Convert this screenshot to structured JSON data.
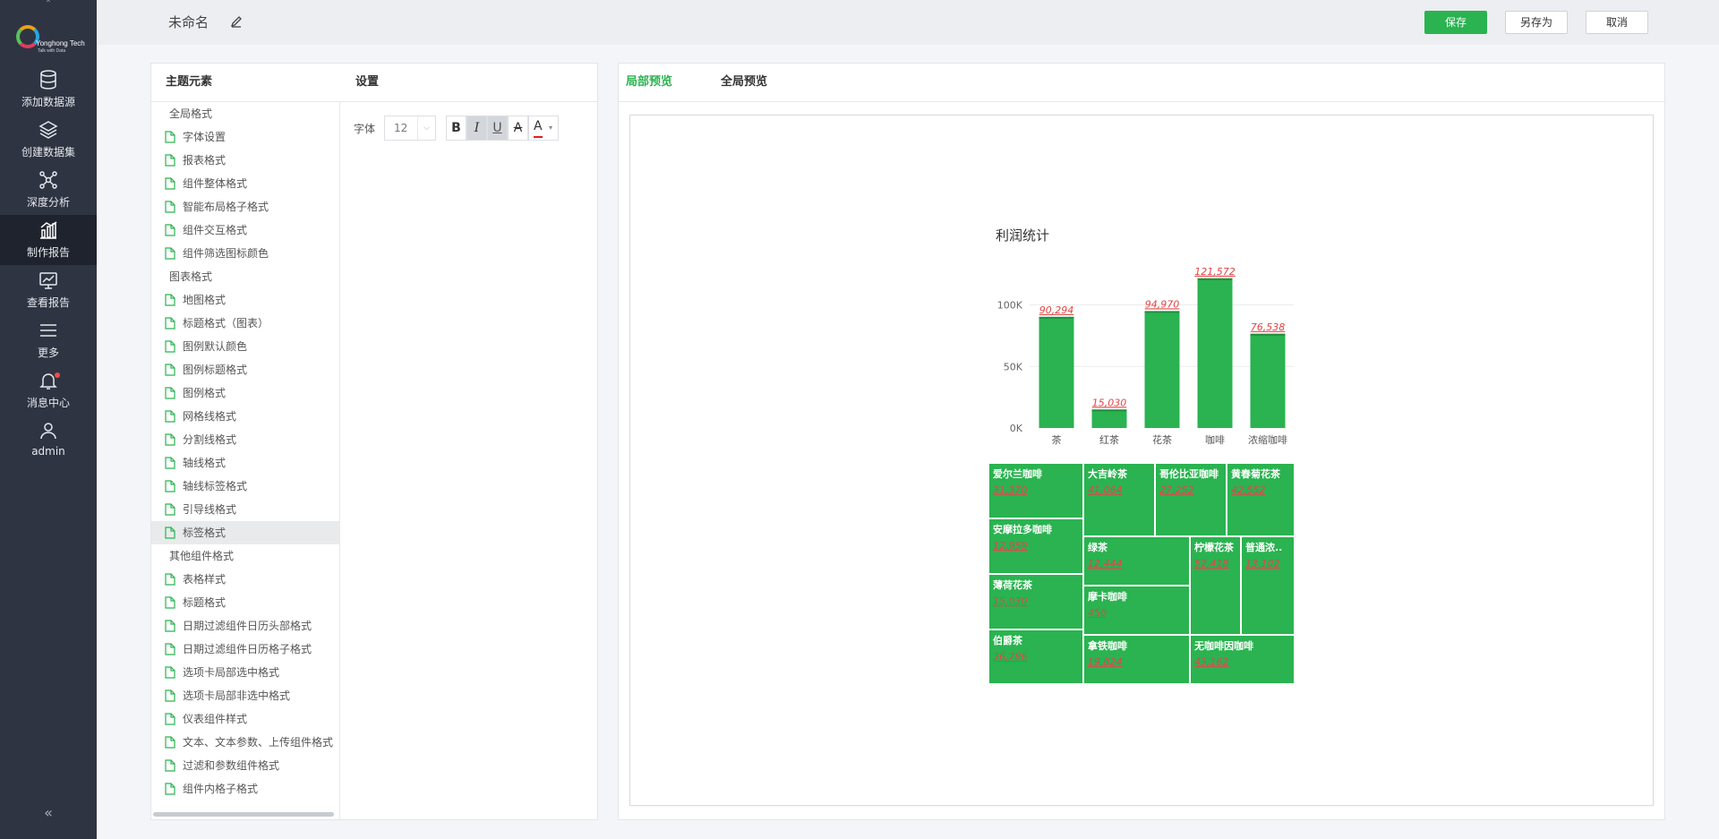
{
  "app": {
    "logo_text": "Yonghong Tech",
    "logo_slogan": "Talk with Data",
    "nav": [
      {
        "label": "添加数据源",
        "icon": "database-icon"
      },
      {
        "label": "创建数据集",
        "icon": "layers-icon"
      },
      {
        "label": "深度分析",
        "icon": "network-icon"
      },
      {
        "label": "制作报告",
        "icon": "report-chart-icon",
        "active": true
      },
      {
        "label": "查看报告",
        "icon": "monitor-chart-icon"
      },
      {
        "label": "更多",
        "icon": "menu-icon"
      },
      {
        "label": "消息中心",
        "icon": "bell-icon",
        "badge": true
      },
      {
        "label": "admin",
        "icon": "user-icon"
      }
    ],
    "collapse_glyph": "«"
  },
  "header": {
    "title": "未命名",
    "buttons": {
      "save": "保存",
      "save_as": "另存为",
      "cancel": "取消"
    }
  },
  "theme_panel": {
    "col1": "主题元素",
    "col2": "设置",
    "tree": [
      {
        "label": "全局格式",
        "type": "group"
      },
      {
        "label": "字体设置",
        "type": "leaf"
      },
      {
        "label": "报表格式",
        "type": "leaf"
      },
      {
        "label": "组件整体格式",
        "type": "leaf"
      },
      {
        "label": "智能布局格子格式",
        "type": "leaf"
      },
      {
        "label": "组件交互格式",
        "type": "leaf"
      },
      {
        "label": "组件筛选图标颜色",
        "type": "leaf"
      },
      {
        "label": "图表格式",
        "type": "group"
      },
      {
        "label": "地图格式",
        "type": "leaf"
      },
      {
        "label": "标题格式（图表）",
        "type": "leaf"
      },
      {
        "label": "图例默认颜色",
        "type": "leaf"
      },
      {
        "label": "图例标题格式",
        "type": "leaf"
      },
      {
        "label": "图例格式",
        "type": "leaf"
      },
      {
        "label": "网格线格式",
        "type": "leaf"
      },
      {
        "label": "分割线格式",
        "type": "leaf"
      },
      {
        "label": "轴线格式",
        "type": "leaf"
      },
      {
        "label": "轴线标签格式",
        "type": "leaf"
      },
      {
        "label": "引导线格式",
        "type": "leaf"
      },
      {
        "label": "标签格式",
        "type": "leaf",
        "selected": true
      },
      {
        "label": "其他组件格式",
        "type": "group"
      },
      {
        "label": "表格样式",
        "type": "leaf"
      },
      {
        "label": "标题格式",
        "type": "leaf"
      },
      {
        "label": "日期过滤组件日历头部格式",
        "type": "leaf"
      },
      {
        "label": "日期过滤组件日历格子格式",
        "type": "leaf"
      },
      {
        "label": "选项卡局部选中格式",
        "type": "leaf"
      },
      {
        "label": "选项卡局部非选中格式",
        "type": "leaf"
      },
      {
        "label": "仪表组件样式",
        "type": "leaf"
      },
      {
        "label": "文本、文本参数、上传组件格式",
        "type": "leaf"
      },
      {
        "label": "过滤和参数组件格式",
        "type": "leaf"
      },
      {
        "label": "组件内格子格式",
        "type": "leaf"
      }
    ],
    "settings": {
      "font_label": "字体",
      "font_size": "12",
      "bold": "B",
      "italic": "I",
      "underline": "U",
      "strike": "A",
      "color": "A",
      "color_value": "#e02020",
      "active_styles": [
        "italic",
        "underline"
      ]
    }
  },
  "preview": {
    "tabs": [
      {
        "label": "局部预览",
        "active": true
      },
      {
        "label": "全局预览",
        "active": false
      }
    ],
    "accent": "#2ab350"
  },
  "chart_data": [
    {
      "type": "bar",
      "title": "利润统计",
      "categories": [
        "茶",
        "红茶",
        "花茶",
        "咖啡",
        "浓缩咖啡"
      ],
      "values": [
        90294,
        15030,
        94970,
        121572,
        76538
      ],
      "value_labels": [
        "90,294",
        "15,030",
        "94,970",
        "121,572",
        "76,538"
      ],
      "yticks": [
        "0K",
        "50K",
        "100K"
      ],
      "ytick_values": [
        0,
        50000,
        100000
      ],
      "ylim": [
        0,
        120000
      ],
      "bar_color": "#2ab350",
      "label_color": "#e04444"
    },
    {
      "type": "treemap",
      "color": "#2ab350",
      "items": [
        {
          "name": "爱尔兰咖啡",
          "value": "31,370"
        },
        {
          "name": "大吉岭茶",
          "value": "41,064"
        },
        {
          "name": "哥伦比亚咖啡",
          "value": "27,252"
        },
        {
          "name": "黄春菊花茶",
          "value": "42,552"
        },
        {
          "name": "安摩拉多咖啡",
          "value": "12,959"
        },
        {
          "name": "绿茶",
          "value": "12,444"
        },
        {
          "name": "柠檬花茶",
          "value": "52,418"
        },
        {
          "name": "普通浓..",
          "value": "13,102"
        },
        {
          "name": "薄荷花茶",
          "value": "15,030"
        },
        {
          "name": "摩卡咖啡",
          "value": "450"
        },
        {
          "name": "伯爵茶",
          "value": "36,786"
        },
        {
          "name": "拿铁咖啡",
          "value": "19,824"
        },
        {
          "name": "无咖啡因咖啡",
          "value": "43,162"
        }
      ]
    }
  ]
}
